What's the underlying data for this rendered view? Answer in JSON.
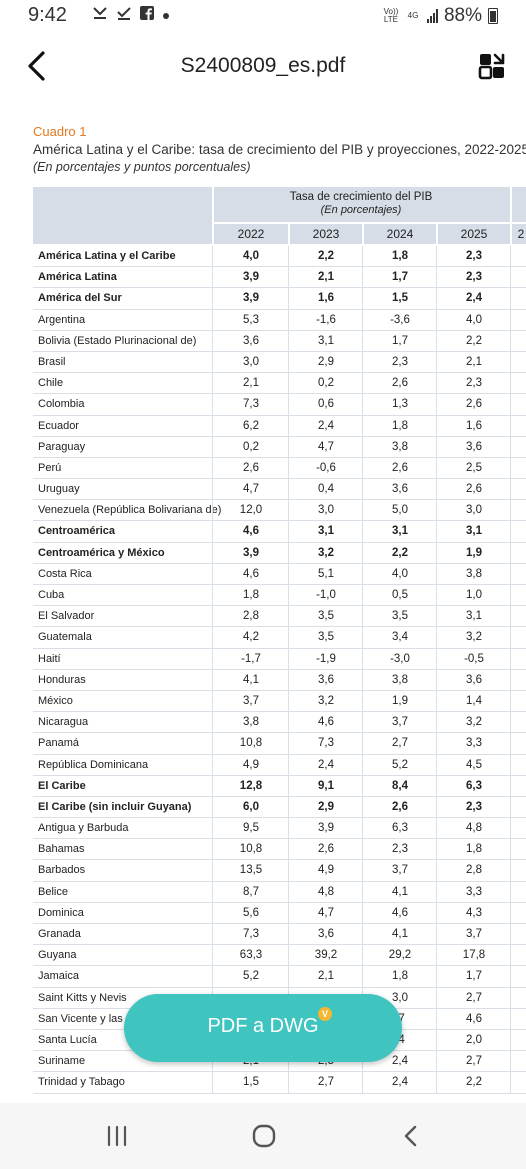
{
  "status_bar": {
    "time": "9:42",
    "network_label": "Vo)) LTE",
    "network_gen": "4G",
    "battery_percent": "88%"
  },
  "app_bar": {
    "title": "S2400809_es.pdf",
    "back_icon": "chevron-left-icon",
    "share_icon": "share-icon"
  },
  "document": {
    "cuadro_label": "Cuadro 1",
    "cuadro_title": "América Latina y el Caribe: tasa de crecimiento del PIB y proyecciones, 2022-2025",
    "cuadro_subtitle": "(En porcentajes y puntos porcentuales)",
    "table": {
      "group_header": "Tasa de crecimiento del PIB",
      "group_subheader": "(En porcentajes)",
      "years": [
        "2022",
        "2023",
        "2024",
        "2025"
      ],
      "rows": [
        {
          "name": "América Latina y el Caribe",
          "bold": true,
          "values": [
            "4,0",
            "2,2",
            "1,8",
            "2,3"
          ]
        },
        {
          "name": "América Latina",
          "bold": true,
          "values": [
            "3,9",
            "2,1",
            "1,7",
            "2,3"
          ]
        },
        {
          "name": "América del Sur",
          "bold": true,
          "values": [
            "3,9",
            "1,6",
            "1,5",
            "2,4"
          ]
        },
        {
          "name": "Argentina",
          "bold": false,
          "values": [
            "5,3",
            "-1,6",
            "-3,6",
            "4,0"
          ]
        },
        {
          "name": "Bolivia (Estado Plurinacional de)",
          "bold": false,
          "values": [
            "3,6",
            "3,1",
            "1,7",
            "2,2"
          ]
        },
        {
          "name": "Brasil",
          "bold": false,
          "values": [
            "3,0",
            "2,9",
            "2,3",
            "2,1"
          ]
        },
        {
          "name": "Chile",
          "bold": false,
          "values": [
            "2,1",
            "0,2",
            "2,6",
            "2,3"
          ]
        },
        {
          "name": "Colombia",
          "bold": false,
          "values": [
            "7,3",
            "0,6",
            "1,3",
            "2,6"
          ]
        },
        {
          "name": "Ecuador",
          "bold": false,
          "values": [
            "6,2",
            "2,4",
            "1,8",
            "1,6"
          ]
        },
        {
          "name": "Paraguay",
          "bold": false,
          "values": [
            "0,2",
            "4,7",
            "3,8",
            "3,6"
          ]
        },
        {
          "name": "Perú",
          "bold": false,
          "values": [
            "2,6",
            "-0,6",
            "2,6",
            "2,5"
          ]
        },
        {
          "name": "Uruguay",
          "bold": false,
          "values": [
            "4,7",
            "0,4",
            "3,6",
            "2,6"
          ]
        },
        {
          "name": "Venezuela (República Bolivariana de)",
          "bold": false,
          "values": [
            "12,0",
            "3,0",
            "5,0",
            "3,0"
          ]
        },
        {
          "name": "Centroamérica",
          "bold": true,
          "values": [
            "4,6",
            "3,1",
            "3,1",
            "3,1"
          ]
        },
        {
          "name": "Centroamérica y México",
          "bold": true,
          "values": [
            "3,9",
            "3,2",
            "2,2",
            "1,9"
          ]
        },
        {
          "name": "Costa Rica",
          "bold": false,
          "values": [
            "4,6",
            "5,1",
            "4,0",
            "3,8"
          ]
        },
        {
          "name": "Cuba",
          "bold": false,
          "values": [
            "1,8",
            "-1,0",
            "0,5",
            "1,0"
          ]
        },
        {
          "name": "El Salvador",
          "bold": false,
          "values": [
            "2,8",
            "3,5",
            "3,5",
            "3,1"
          ]
        },
        {
          "name": "Guatemala",
          "bold": false,
          "values": [
            "4,2",
            "3,5",
            "3,4",
            "3,2"
          ]
        },
        {
          "name": "Haití",
          "bold": false,
          "values": [
            "-1,7",
            "-1,9",
            "-3,0",
            "-0,5"
          ]
        },
        {
          "name": "Honduras",
          "bold": false,
          "values": [
            "4,1",
            "3,6",
            "3,8",
            "3,6"
          ]
        },
        {
          "name": "México",
          "bold": false,
          "values": [
            "3,7",
            "3,2",
            "1,9",
            "1,4"
          ]
        },
        {
          "name": "Nicaragua",
          "bold": false,
          "values": [
            "3,8",
            "4,6",
            "3,7",
            "3,2"
          ]
        },
        {
          "name": "Panamá",
          "bold": false,
          "values": [
            "10,8",
            "7,3",
            "2,7",
            "3,3"
          ]
        },
        {
          "name": "República Dominicana",
          "bold": false,
          "values": [
            "4,9",
            "2,4",
            "5,2",
            "4,5"
          ]
        },
        {
          "name": "El Caribe",
          "bold": true,
          "values": [
            "12,8",
            "9,1",
            "8,4",
            "6,3"
          ]
        },
        {
          "name": "El Caribe (sin incluir Guyana)",
          "bold": true,
          "values": [
            "6,0",
            "2,9",
            "2,6",
            "2,3"
          ]
        },
        {
          "name": "Antigua y Barbuda",
          "bold": false,
          "values": [
            "9,5",
            "3,9",
            "6,3",
            "4,8"
          ]
        },
        {
          "name": "Bahamas",
          "bold": false,
          "values": [
            "10,8",
            "2,6",
            "2,3",
            "1,8"
          ]
        },
        {
          "name": "Barbados",
          "bold": false,
          "values": [
            "13,5",
            "4,9",
            "3,7",
            "2,8"
          ]
        },
        {
          "name": "Belice",
          "bold": false,
          "values": [
            "8,7",
            "4,8",
            "4,1",
            "3,3"
          ]
        },
        {
          "name": "Dominica",
          "bold": false,
          "values": [
            "5,6",
            "4,7",
            "4,6",
            "4,3"
          ]
        },
        {
          "name": "Granada",
          "bold": false,
          "values": [
            "7,3",
            "3,6",
            "4,1",
            "3,7"
          ]
        },
        {
          "name": "Guyana",
          "bold": false,
          "values": [
            "63,3",
            "39,2",
            "29,2",
            "17,8"
          ]
        },
        {
          "name": "Jamaica",
          "bold": false,
          "values": [
            "5,2",
            "2,1",
            "1,8",
            "1,7"
          ]
        },
        {
          "name": "Saint Kitts y Nevis",
          "bold": false,
          "values": [
            "",
            "",
            "3,0",
            "2,7"
          ]
        },
        {
          "name": "San Vicente y las G",
          "bold": false,
          "values": [
            "",
            "",
            ",7",
            "4,6"
          ]
        },
        {
          "name": "Santa Lucía",
          "bold": false,
          "values": [
            "",
            "",
            ",4",
            "2,0"
          ]
        },
        {
          "name": "Suriname",
          "bold": false,
          "values": [
            "2,1",
            "2,5",
            "2,4",
            "2,7"
          ]
        },
        {
          "name": "Trinidad y Tabago",
          "bold": false,
          "values": [
            "1,5",
            "2,7",
            "2,4",
            "2,2"
          ]
        }
      ]
    }
  },
  "fab": {
    "label": "PDF a DWG",
    "badge": "V"
  },
  "nav_bar": {
    "recent_icon": "recent-apps-icon",
    "home_icon": "home-icon",
    "back_icon": "back-icon"
  }
}
